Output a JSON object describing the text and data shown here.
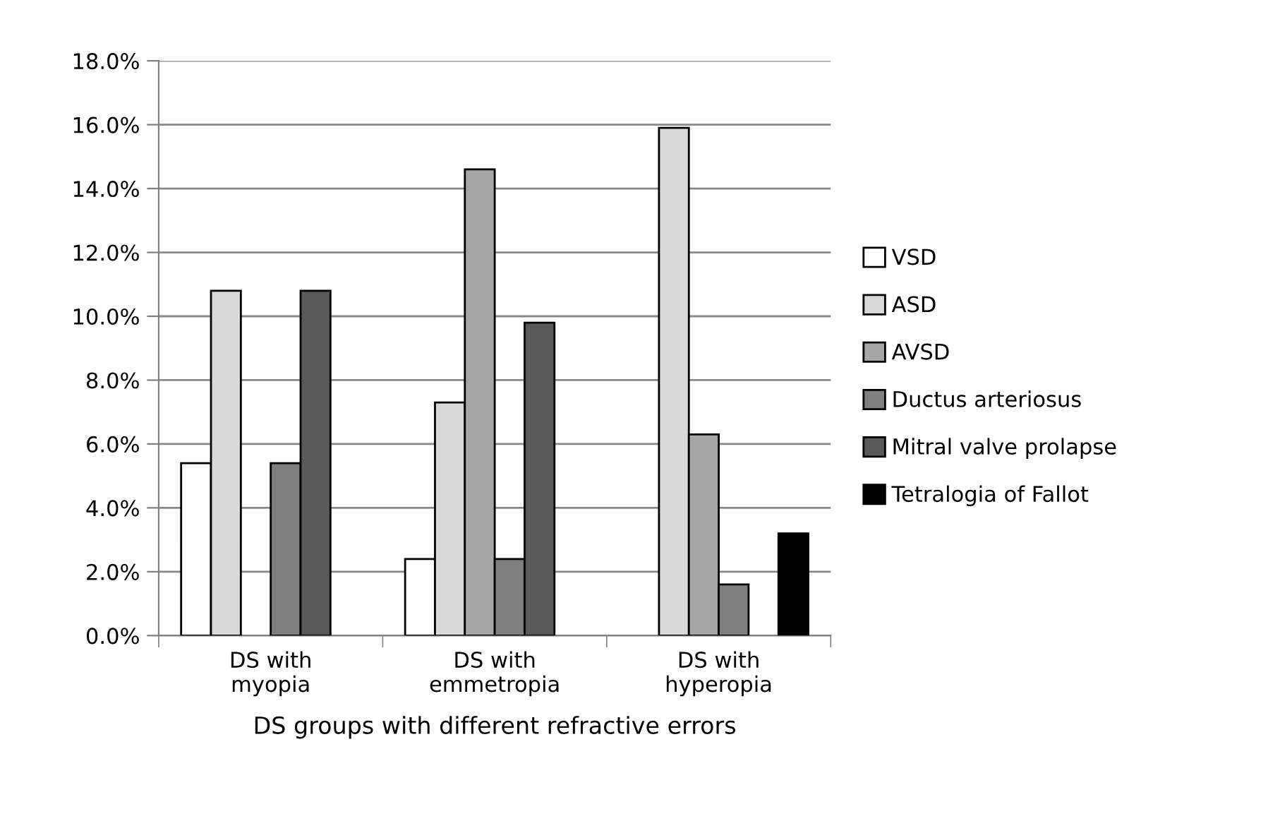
{
  "chart_data": {
    "type": "bar",
    "xlabel": "DS groups with different refractive errors",
    "categories": [
      "DS with\nmyopia",
      "DS with\nemmetropia",
      "DS with\nhyperopia"
    ],
    "series": [
      {
        "name": "VSD",
        "color": "#ffffff",
        "values": [
          5.4,
          2.4,
          null
        ]
      },
      {
        "name": "ASD",
        "color": "#d9d9d9",
        "values": [
          10.8,
          7.3,
          15.9
        ]
      },
      {
        "name": "AVSD",
        "color": "#a6a6a6",
        "values": [
          null,
          14.6,
          6.3
        ]
      },
      {
        "name": "Ductus arteriosus",
        "color": "#7f7f7f",
        "values": [
          5.4,
          2.4,
          1.6
        ]
      },
      {
        "name": "Mitral valve prolapse",
        "color": "#595959",
        "values": [
          10.8,
          9.8,
          null
        ]
      },
      {
        "name": "Tetralogia of Fallot",
        "color": "#000000",
        "values": [
          null,
          null,
          3.2
        ]
      }
    ],
    "ylim": [
      0,
      18
    ],
    "yticks": [
      {
        "value": 0,
        "label": "0.0%"
      },
      {
        "value": 2,
        "label": "2.0%"
      },
      {
        "value": 4,
        "label": "4.0%"
      },
      {
        "value": 6,
        "label": "6.0%"
      },
      {
        "value": 8,
        "label": "8.0%"
      },
      {
        "value": 10,
        "label": "10.0%"
      },
      {
        "value": 12,
        "label": "12.0%"
      },
      {
        "value": 14,
        "label": "14.0%"
      },
      {
        "value": 16,
        "label": "16.0%"
      },
      {
        "value": 18,
        "label": "18.0%"
      }
    ],
    "grid": "y",
    "legend": "right"
  }
}
